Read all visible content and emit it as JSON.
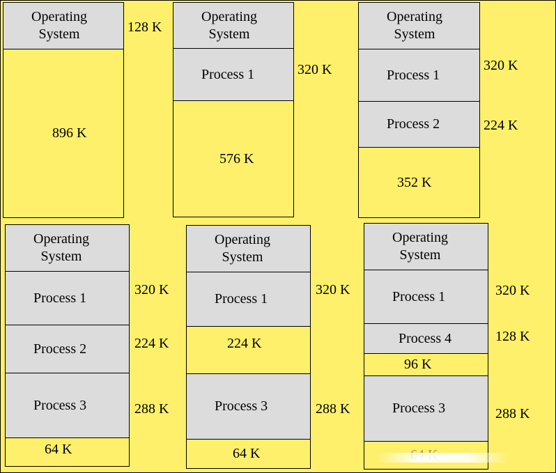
{
  "diagrams": [
    {
      "blocks": [
        {
          "text": "Operating\nSystem",
          "kind": "os"
        },
        {
          "text": "896 K",
          "kind": "free"
        }
      ],
      "side_labels": [
        "128 K"
      ]
    },
    {
      "blocks": [
        {
          "text": "Operating\nSystem",
          "kind": "os"
        },
        {
          "text": "Process 1",
          "kind": "process"
        },
        {
          "text": "576 K",
          "kind": "free"
        }
      ],
      "side_labels": [
        "320 K"
      ]
    },
    {
      "blocks": [
        {
          "text": "Operating\nSystem",
          "kind": "os"
        },
        {
          "text": "Process 1",
          "kind": "process"
        },
        {
          "text": "Process 2",
          "kind": "process"
        },
        {
          "text": "352 K",
          "kind": "free"
        }
      ],
      "side_labels": [
        "320 K",
        "224 K"
      ]
    },
    {
      "blocks": [
        {
          "text": "Operating\nSystem",
          "kind": "os"
        },
        {
          "text": "Process 1",
          "kind": "process"
        },
        {
          "text": "Process 2",
          "kind": "process"
        },
        {
          "text": "Process 3",
          "kind": "process"
        },
        {
          "text": "64 K",
          "kind": "free"
        }
      ],
      "side_labels": [
        "320 K",
        "224 K",
        "288 K"
      ]
    },
    {
      "blocks": [
        {
          "text": "Operating\nSystem",
          "kind": "os"
        },
        {
          "text": "Process 1",
          "kind": "process"
        },
        {
          "text": "224 K",
          "kind": "free"
        },
        {
          "text": "Process 3",
          "kind": "process"
        },
        {
          "text": "64 K",
          "kind": "free"
        }
      ],
      "side_labels": [
        "320 K",
        "288 K"
      ]
    },
    {
      "blocks": [
        {
          "text": "Operating\nSystem",
          "kind": "os"
        },
        {
          "text": "Process 1",
          "kind": "process"
        },
        {
          "text": "Process 4",
          "kind": "process"
        },
        {
          "text": "96 K",
          "kind": "free"
        },
        {
          "text": "Process 3",
          "kind": "process"
        },
        {
          "text": "64 K",
          "kind": "free"
        }
      ],
      "side_labels": [
        "320 K",
        "128 K",
        "288 K"
      ]
    }
  ],
  "colors": {
    "background": "#fef06a",
    "used": "#dcdcdc",
    "border": "#000000"
  }
}
